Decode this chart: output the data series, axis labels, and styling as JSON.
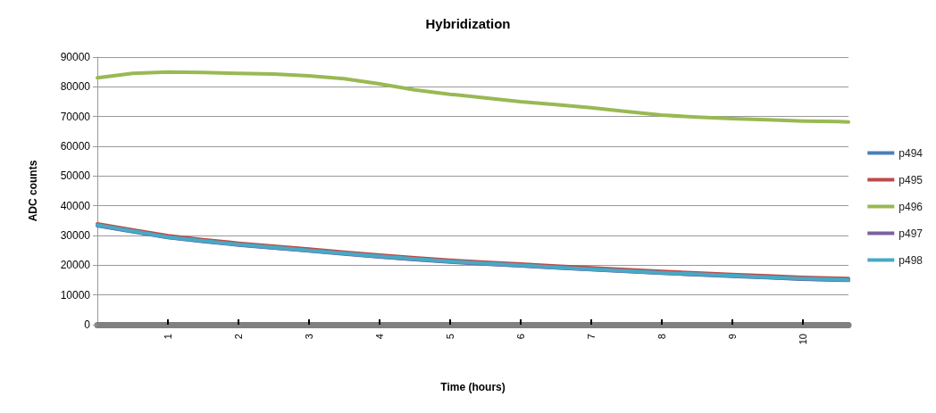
{
  "chart_data": {
    "type": "line",
    "title": "Hybridization",
    "xlabel": "Time (hours)",
    "ylabel": "ADC counts",
    "x": [
      0,
      0.5,
      1,
      1.5,
      2,
      2.5,
      3,
      3.5,
      4,
      4.5,
      5,
      5.5,
      6,
      6.5,
      7,
      7.5,
      8,
      8.5,
      9,
      9.5,
      10,
      10.5,
      10.65
    ],
    "series": [
      {
        "name": "p494",
        "color": "#4a7ebb",
        "values": [
          33300,
          31300,
          29300,
          28000,
          26800,
          25800,
          24800,
          23800,
          22800,
          21900,
          21100,
          20400,
          19800,
          19100,
          18500,
          17900,
          17300,
          16800,
          16300,
          15800,
          15300,
          15000,
          14900
        ]
      },
      {
        "name": "p495",
        "color": "#be4b48",
        "values": [
          33900,
          31900,
          29900,
          28600,
          27400,
          26400,
          25400,
          24400,
          23400,
          22500,
          21700,
          21000,
          20400,
          19700,
          19100,
          18500,
          17900,
          17400,
          16900,
          16400,
          15900,
          15600,
          15500
        ]
      },
      {
        "name": "p496",
        "color": "#98b954",
        "values": [
          83000,
          84500,
          85000,
          84800,
          84500,
          84300,
          83700,
          82700,
          81000,
          79000,
          77500,
          76300,
          75000,
          74000,
          73000,
          71700,
          70500,
          69800,
          69300,
          68900,
          68500,
          68300,
          68200
        ]
      },
      {
        "name": "p497",
        "color": "#7d60a0",
        "values": [
          33400,
          31400,
          29400,
          28100,
          26900,
          25900,
          24900,
          23900,
          22900,
          22000,
          21200,
          20500,
          19900,
          19200,
          18600,
          18000,
          17400,
          16900,
          16400,
          15900,
          15400,
          15100,
          15000
        ]
      },
      {
        "name": "p498",
        "color": "#46aac5",
        "values": [
          33500,
          31500,
          29500,
          28200,
          27000,
          26000,
          25000,
          24000,
          23000,
          22100,
          21300,
          20600,
          20000,
          19300,
          18700,
          18100,
          17500,
          17000,
          16500,
          16000,
          15500,
          15200,
          15100
        ]
      }
    ],
    "xlim": [
      0,
      10.65
    ],
    "xticks": [
      1,
      2,
      3,
      4,
      5,
      6,
      7,
      8,
      9,
      10
    ],
    "ylim": [
      0,
      90000
    ],
    "yticks": [
      0,
      10000,
      20000,
      30000,
      40000,
      50000,
      60000,
      70000,
      80000,
      90000
    ],
    "grid": "y",
    "legend": "right",
    "marker": "none",
    "line_style": "solid"
  }
}
